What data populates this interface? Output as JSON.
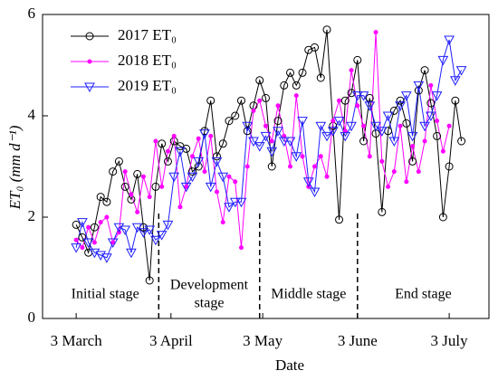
{
  "chart_data": {
    "type": "line",
    "xlabel": "Date",
    "ylabel": "ET₀ (mm d⁻¹)",
    "x": [
      0,
      2,
      4,
      6,
      8,
      10,
      12,
      14,
      16,
      18,
      20,
      22,
      24,
      26,
      28,
      30,
      32,
      34,
      36,
      38,
      40,
      42,
      44,
      46,
      48,
      50,
      52,
      54,
      56,
      58,
      60,
      62,
      64,
      66,
      68,
      70,
      72,
      74,
      76,
      78,
      80,
      82,
      84,
      86,
      88,
      90,
      92,
      94,
      96,
      98,
      100,
      102,
      104,
      106,
      108,
      110,
      112,
      114,
      116,
      118,
      120,
      122,
      124,
      126
    ],
    "series": [
      {
        "name": "2017 ET₀",
        "color": "#000000",
        "marker": "circle",
        "values": [
          1.85,
          1.6,
          1.3,
          1.8,
          2.4,
          2.3,
          2.9,
          3.1,
          2.6,
          2.35,
          2.85,
          1.8,
          0.75,
          2.6,
          3.45,
          3.1,
          3.5,
          3.4,
          3.35,
          2.9,
          3.0,
          3.7,
          4.3,
          3.2,
          3.45,
          3.9,
          4.0,
          4.3,
          3.7,
          4.2,
          4.7,
          4.35,
          3.0,
          3.9,
          4.6,
          4.85,
          4.6,
          4.85,
          5.3,
          5.35,
          4.75,
          5.7,
          3.8,
          1.95,
          4.3,
          4.45,
          5.1,
          3.5,
          4.35,
          3.65,
          2.1,
          3.7,
          4.1,
          4.3,
          3.85,
          3.1,
          4.5,
          4.9,
          4.25,
          3.6,
          2.0,
          3.0,
          4.3,
          3.5
        ]
      },
      {
        "name": "2018 ET₀",
        "color": "#ff00ff",
        "marker": "dot",
        "values": [
          1.55,
          1.4,
          1.8,
          1.5,
          1.9,
          2.0,
          1.5,
          1.7,
          2.9,
          2.45,
          2.1,
          2.8,
          2.4,
          3.5,
          2.6,
          3.3,
          3.6,
          2.2,
          2.6,
          3.2,
          3.55,
          2.9,
          3.6,
          2.5,
          1.9,
          2.8,
          2.7,
          1.4,
          3.0,
          4.1,
          4.3,
          3.8,
          3.5,
          4.2,
          3.6,
          3.0,
          4.4,
          3.2,
          2.6,
          3.0,
          3.2,
          2.8,
          3.9,
          4.3,
          3.7,
          4.9,
          4.2,
          3.8,
          3.2,
          5.65,
          3.1,
          2.6,
          2.9,
          3.8,
          2.7,
          3.4,
          2.9,
          3.5,
          4.6,
          3.9,
          3.3,
          3.8,
          null,
          null
        ]
      },
      {
        "name": "2019 ET₀",
        "color": "#1f1fff",
        "marker": "triangle-down",
        "values": [
          1.4,
          1.9,
          1.5,
          1.3,
          1.25,
          1.2,
          1.5,
          1.8,
          1.75,
          1.3,
          1.8,
          1.7,
          1.75,
          1.55,
          1.65,
          1.85,
          2.8,
          3.3,
          2.6,
          2.8,
          3.1,
          3.65,
          2.6,
          3.1,
          2.8,
          2.2,
          2.3,
          2.3,
          3.8,
          3.5,
          3.4,
          3.6,
          3.3,
          3.7,
          3.5,
          3.5,
          3.2,
          3.9,
          2.7,
          2.5,
          3.8,
          3.6,
          3.7,
          3.9,
          3.6,
          3.8,
          4.4,
          4.4,
          4.2,
          3.8,
          3.7,
          4.0,
          3.5,
          4.2,
          4.4,
          3.6,
          4.6,
          3.8,
          4.0,
          4.4,
          5.1,
          5.5,
          4.7,
          4.9
        ]
      }
    ],
    "xlim": [
      -11,
      135
    ],
    "xticks": [
      {
        "value": 0,
        "label": "3 March"
      },
      {
        "value": 31,
        "label": "3 April"
      },
      {
        "value": 61,
        "label": "3 May"
      },
      {
        "value": 92,
        "label": "3 June"
      },
      {
        "value": 122,
        "label": "3 July"
      }
    ],
    "ylim": [
      0,
      6
    ],
    "yticks": [
      0,
      2,
      4,
      6
    ],
    "stage_boundaries": [
      27,
      60,
      92
    ],
    "stage_boundary_height": 2.1,
    "stages": [
      [
        "Initial stage"
      ],
      [
        "Development",
        "stage"
      ],
      [
        "Middle stage"
      ],
      [
        "End stage"
      ]
    ],
    "legend": "upper left",
    "grid": false
  }
}
